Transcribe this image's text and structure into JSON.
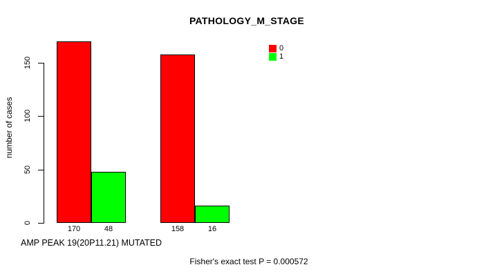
{
  "chart_data": {
    "type": "bar",
    "title": "PATHOLOGY_M_STAGE",
    "ylabel": "number of cases",
    "xlabel": "AMP PEAK 19(20P11.21) MUTATED",
    "annotation": "Fisher's exact test P = 0.000572",
    "yticks": [
      0,
      50,
      100,
      150
    ],
    "ylim": [
      0,
      175
    ],
    "grid": false,
    "legend_position": "top-right",
    "legend": [
      {
        "label": "0",
        "color": "#ff0000"
      },
      {
        "label": "1",
        "color": "#00ff00"
      }
    ],
    "groups": 2,
    "series": [
      {
        "name": "0",
        "color": "#ff0000",
        "values": [
          170,
          158
        ]
      },
      {
        "name": "1",
        "color": "#00ff00",
        "values": [
          48,
          16
        ]
      }
    ],
    "bar_labels": [
      "170",
      "48",
      "158",
      "16"
    ],
    "colors": {
      "background": "#ffffff",
      "axis": "#000000",
      "text": "#000000"
    }
  }
}
